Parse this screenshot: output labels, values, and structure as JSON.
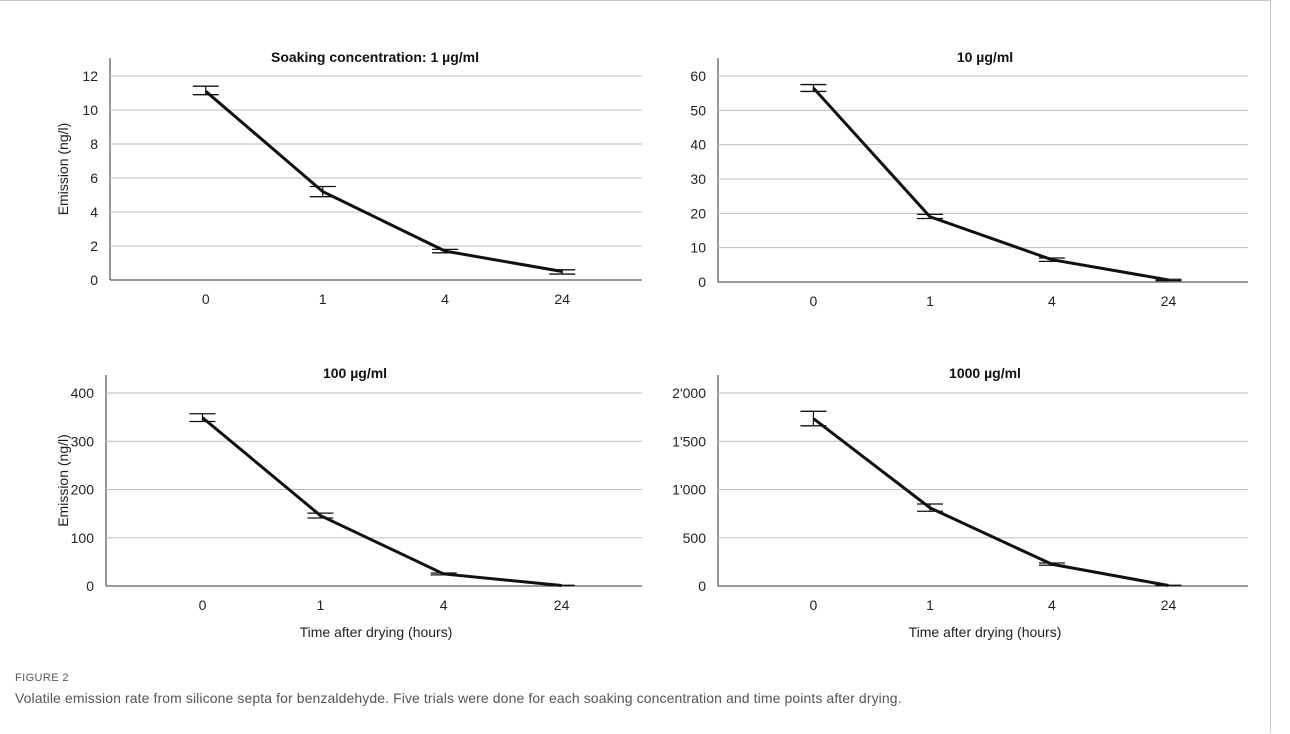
{
  "figure": {
    "label": "FIGURE 2",
    "caption": "Volatile emission rate from silicone septa for benzaldehyde. Five trials were done for each soaking concentration and time points after drying."
  },
  "chart_data": [
    {
      "type": "line",
      "title": "Soaking concentration: 1 µg/ml",
      "xlabel": "",
      "ylabel": "Emission (ng/l)",
      "categories": [
        "0",
        "1",
        "4",
        "24"
      ],
      "values": [
        11.1,
        5.2,
        1.7,
        0.5
      ],
      "error_low": [
        10.9,
        4.9,
        1.6,
        0.35
      ],
      "error_high": [
        11.4,
        5.5,
        1.8,
        0.6
      ],
      "ylim": [
        0,
        12
      ],
      "yticks": [
        0,
        2,
        4,
        6,
        8,
        10,
        12
      ],
      "ytick_labels": [
        "0",
        "2",
        "4",
        "6",
        "8",
        "10",
        "12"
      ],
      "grid": true
    },
    {
      "type": "line",
      "title": "10 µg/ml",
      "xlabel": "",
      "ylabel": "",
      "categories": [
        "0",
        "1",
        "4",
        "24"
      ],
      "values": [
        56.5,
        19,
        6.5,
        0.6
      ],
      "error_low": [
        55.5,
        18.5,
        6.0,
        0.4
      ],
      "error_high": [
        57.5,
        19.7,
        7.0,
        0.8
      ],
      "ylim": [
        0,
        60
      ],
      "yticks": [
        0,
        10,
        20,
        30,
        40,
        50,
        60
      ],
      "ytick_labels": [
        "0",
        "10",
        "20",
        "30",
        "40",
        "50",
        "60"
      ],
      "grid": true
    },
    {
      "type": "line",
      "title": "100 µg/ml",
      "xlabel": "Time after drying (hours)",
      "ylabel": "Emission (ng/l)",
      "categories": [
        "0",
        "1",
        "4",
        "24"
      ],
      "values": [
        349,
        146,
        25,
        1
      ],
      "error_low": [
        341,
        141,
        23,
        0.5
      ],
      "error_high": [
        357,
        151,
        27,
        1.5
      ],
      "ylim": [
        0,
        400
      ],
      "yticks": [
        0,
        100,
        200,
        300,
        400
      ],
      "ytick_labels": [
        "0",
        "100",
        "200",
        "300",
        "400"
      ],
      "grid": true
    },
    {
      "type": "line",
      "title": "1000 µg/ml",
      "xlabel": "Time after drying (hours)",
      "ylabel": "",
      "categories": [
        "0",
        "1",
        "4",
        "24"
      ],
      "values": [
        1735,
        810,
        225,
        5
      ],
      "error_low": [
        1660,
        775,
        215,
        3
      ],
      "error_high": [
        1810,
        850,
        238,
        8
      ],
      "ylim": [
        0,
        2000
      ],
      "yticks": [
        0,
        500,
        1000,
        1500,
        2000
      ],
      "ytick_labels": [
        "0",
        "500",
        "1'000",
        "1'500",
        "2'000"
      ],
      "grid": true
    }
  ]
}
